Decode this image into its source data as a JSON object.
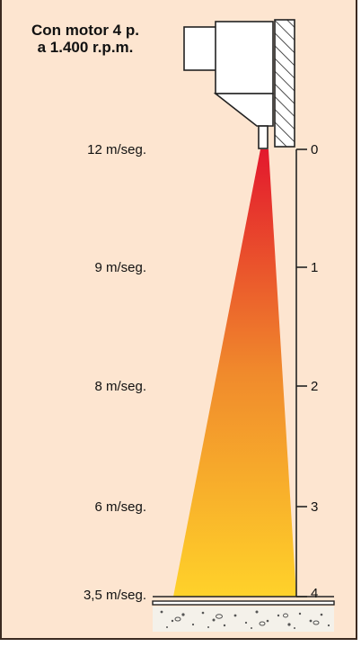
{
  "title": {
    "line1": "Con motor 4 p.",
    "line2": "a 1.400 r.p.m."
  },
  "speed_labels": [
    "12 m/seg.",
    "9 m/seg.",
    "8 m/seg.",
    "6 m/seg.",
    "3,5 m/seg."
  ],
  "scale_ticks": [
    "0",
    "1",
    "2",
    "3",
    "4"
  ],
  "colors": {
    "background": "#fde5d0",
    "plume_top": "#e3182d",
    "plume_mid": "#f08a2c",
    "plume_bottom": "#ffd22a",
    "line": "#222222"
  }
}
